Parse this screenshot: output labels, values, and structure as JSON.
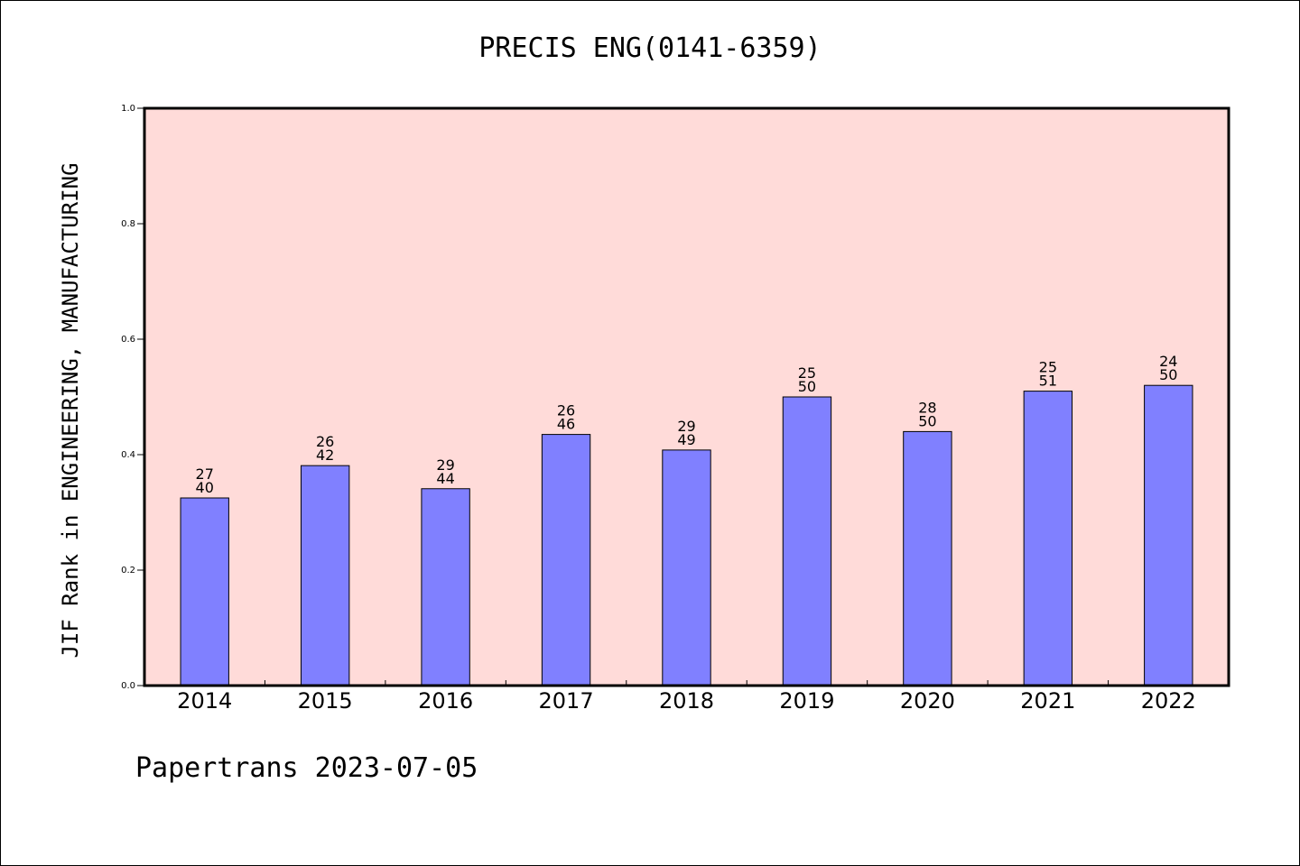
{
  "chart_data": {
    "type": "bar",
    "title": "PRECIS ENG(0141-6359)",
    "ylabel": "JIF Rank in ENGINEERING, MANUFACTURING",
    "xlabel": "",
    "categories": [
      "2014",
      "2015",
      "2016",
      "2017",
      "2018",
      "2019",
      "2020",
      "2021",
      "2022"
    ],
    "values": [
      0.325,
      0.381,
      0.341,
      0.435,
      0.408,
      0.5,
      0.44,
      0.51,
      0.52
    ],
    "rank": [
      "27",
      "26",
      "29",
      "26",
      "29",
      "25",
      "28",
      "25",
      "24"
    ],
    "total": [
      "40",
      "42",
      "44",
      "46",
      "49",
      "50",
      "50",
      "51",
      "50"
    ],
    "ylim": [
      0,
      1.0
    ],
    "yticks": [
      "0.0",
      "0.2",
      "0.4",
      "0.6",
      "0.8",
      "1.0"
    ],
    "grid": false,
    "colors": {
      "plot_background": "#ffdbd9",
      "bar_fill": "#8080ff",
      "bar_edge": "#000000"
    }
  },
  "footer": "Papertrans 2023-07-05"
}
